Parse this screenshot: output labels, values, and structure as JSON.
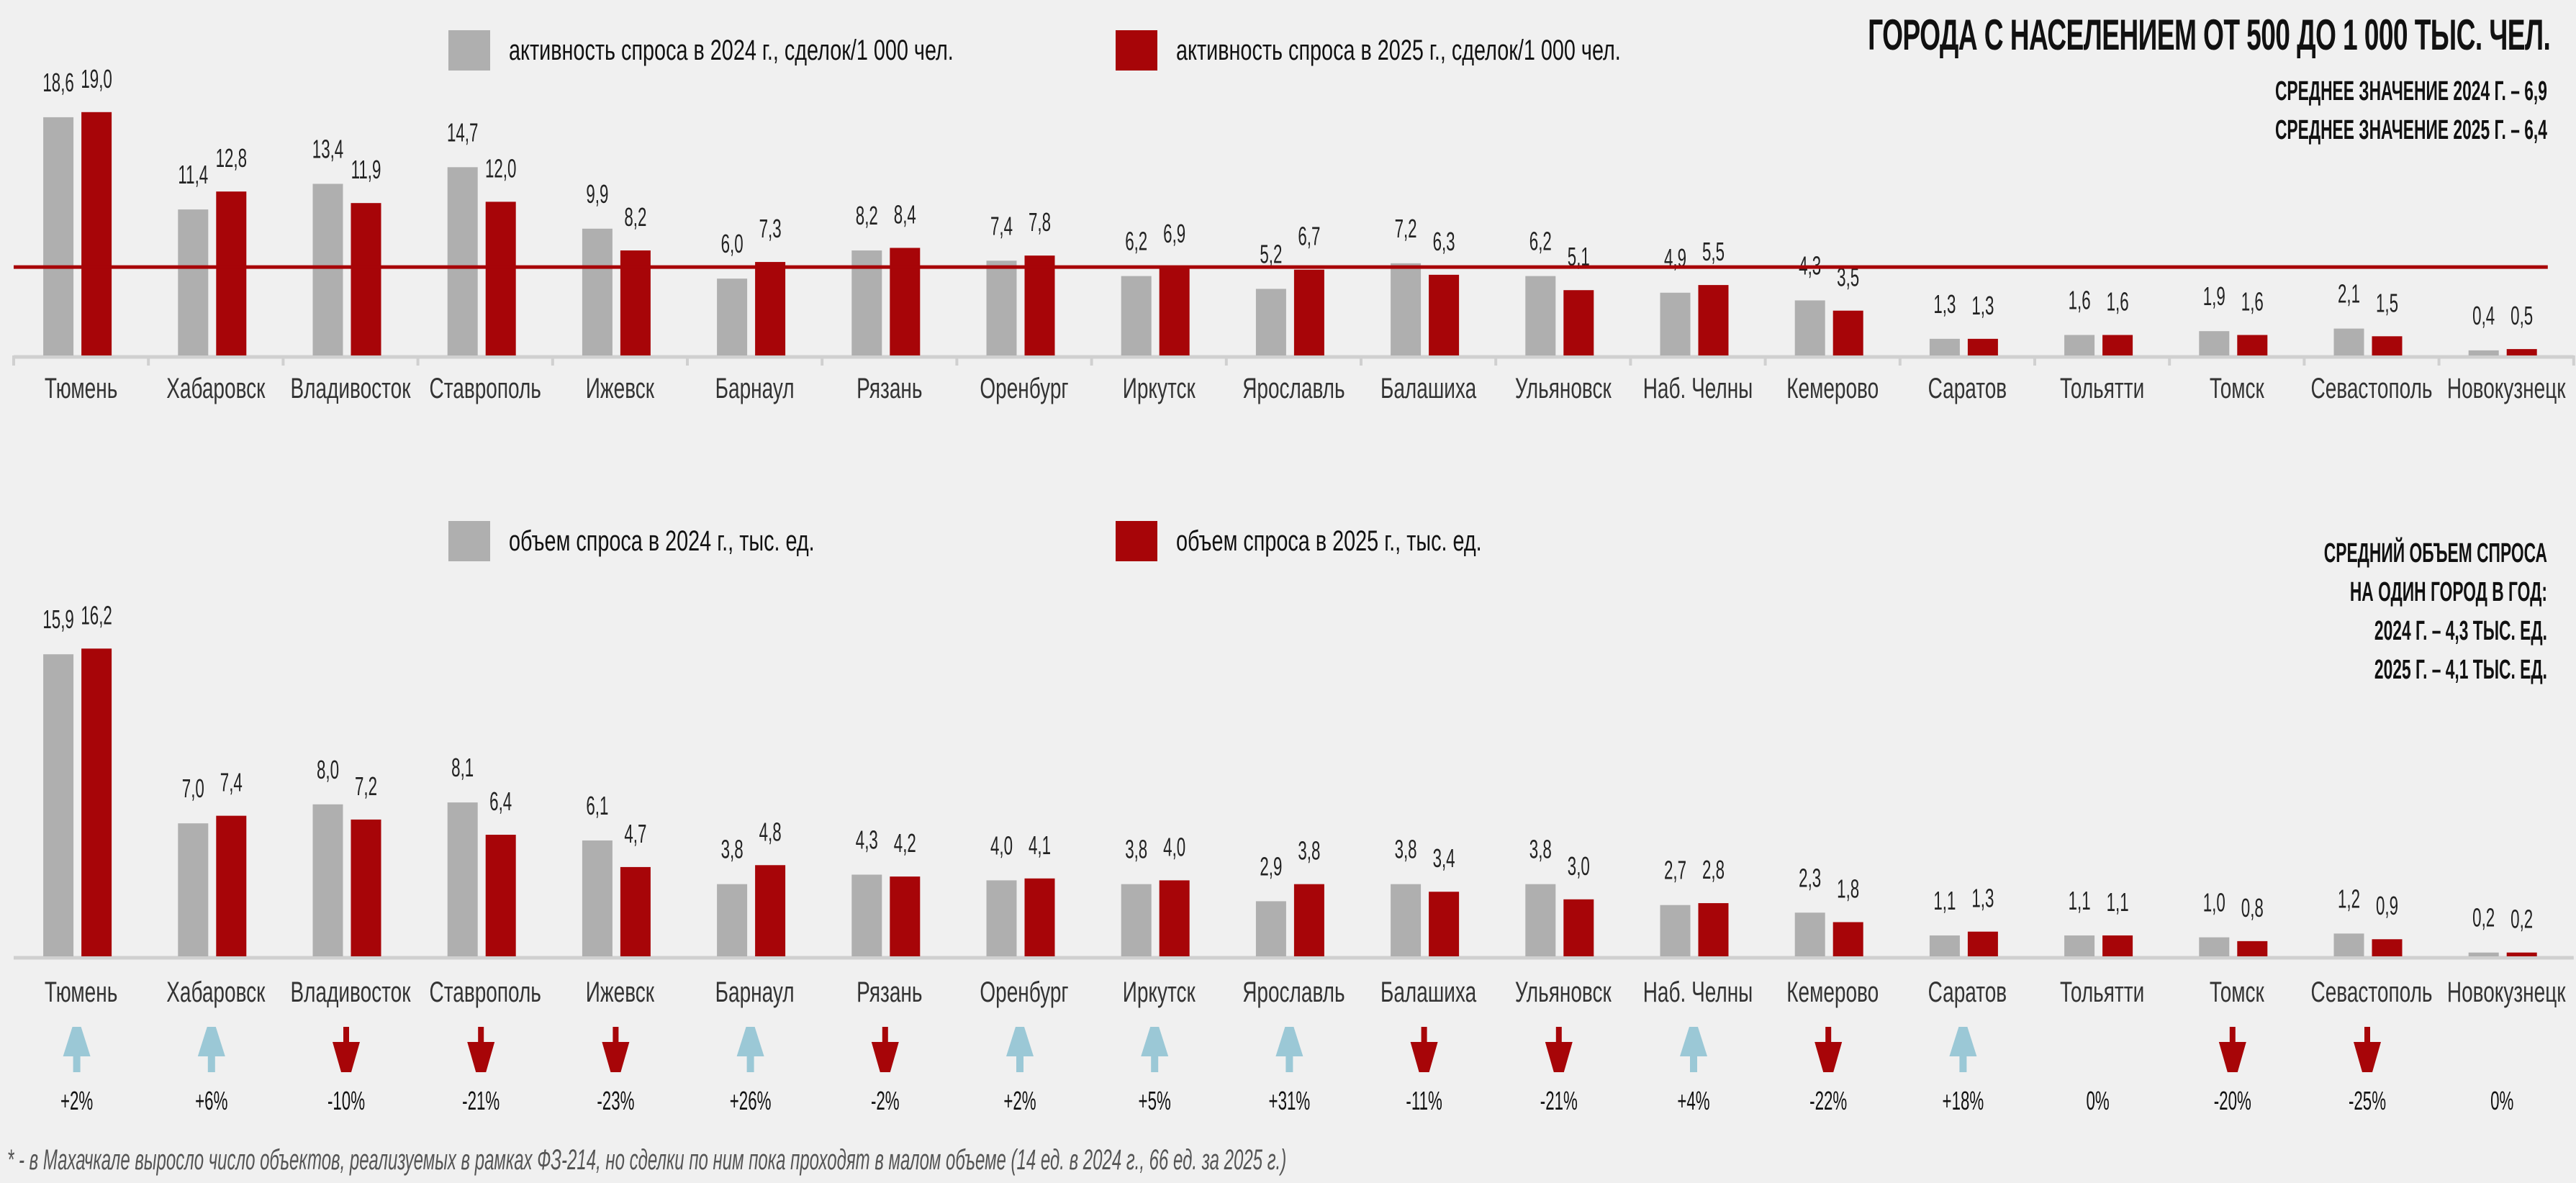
{
  "title": "ГОРОДА С НАСЕЛЕНИЕМ ОТ 500 ДО 1 000 ТЫС. ЧЕЛ.",
  "colors": {
    "series_2024": "#afafaf",
    "series_2025": "#a70508",
    "average_line": "#a70508",
    "arrow_up": "#9bc8d6",
    "arrow_down": "#a70508",
    "axis": "#d0d0d0",
    "background": "#f0f0f0"
  },
  "top_notes": [
    "СРЕДНЕЕ ЗНАЧЕНИЕ 2024 Г. – 6,9",
    "СРЕДНЕЕ ЗНАЧЕНИЕ 2025 Г. – 6,4"
  ],
  "bottom_notes": [
    "СРЕДНИЙ ОБЪЕМ СПРОСА",
    "НА ОДИН ГОРОД В ГОД:",
    "2024 Г. – 4,3 ТЫС. ЕД.",
    "2025 Г. – 4,1 ТЫС. ЕД."
  ],
  "footnote": "* - в Махачкале выросло число объектов, реализуемых в рамках ФЗ-214, но сделки по ним пока проходят в малом объеме (14 ед. в 2024 г., 66 ед. за 2025 г.)",
  "chart_data": [
    {
      "type": "bar",
      "title": "активность спроса",
      "xlabel": "",
      "ylabel": "сделок/1 000 чел.",
      "ylim": [
        0,
        19
      ],
      "grid": false,
      "legend_position": "top",
      "categories": [
        "Тюмень",
        "Хабаровск",
        "Владивосток",
        "Ставрополь",
        "Ижевск",
        "Барнаул",
        "Рязань",
        "Оренбург",
        "Иркутск",
        "Ярославль",
        "Балашиха",
        "Ульяновск",
        "Наб. Челны",
        "Кемерово",
        "Саратов",
        "Тольятти",
        "Томск",
        "Севастополь",
        "Новокузнецк"
      ],
      "series": [
        {
          "name": "активность спроса в 2024 г., сделок/1 000 чел.",
          "values": [
            18.6,
            11.4,
            13.4,
            14.7,
            9.9,
            6.0,
            8.2,
            7.4,
            6.2,
            5.2,
            7.2,
            6.2,
            4.9,
            4.3,
            1.3,
            1.6,
            1.9,
            2.1,
            0.4
          ]
        },
        {
          "name": "активность спроса в 2025 г., сделок/1 000 чел.",
          "values": [
            19.0,
            12.8,
            11.9,
            12.0,
            8.2,
            7.3,
            8.4,
            7.8,
            6.9,
            6.7,
            6.3,
            5.1,
            5.5,
            3.5,
            1.3,
            1.6,
            1.6,
            1.5,
            0.5
          ]
        }
      ],
      "reference_line": {
        "label": "среднее значение",
        "value": 6.9
      }
    },
    {
      "type": "bar",
      "title": "объем спроса",
      "xlabel": "",
      "ylabel": "тыс. ед.",
      "ylim": [
        0,
        16.2
      ],
      "grid": false,
      "legend_position": "top",
      "categories": [
        "Тюмень",
        "Хабаровск",
        "Владивосток",
        "Ставрополь",
        "Ижевск",
        "Барнаул",
        "Рязань",
        "Оренбург",
        "Иркутск",
        "Ярославль",
        "Балашиха",
        "Ульяновск",
        "Наб. Челны",
        "Кемерово",
        "Саратов",
        "Тольятти",
        "Томск",
        "Севастополь",
        "Новокузнецк"
      ],
      "series": [
        {
          "name": "объем спроса в 2024 г., тыс. ед.",
          "values": [
            15.9,
            7.0,
            8.0,
            8.1,
            6.1,
            3.8,
            4.3,
            4.0,
            3.8,
            2.9,
            3.8,
            3.8,
            2.7,
            2.3,
            1.1,
            1.1,
            1.0,
            1.2,
            0.2
          ]
        },
        {
          "name": "объем спроса в 2025 г., тыс. ед.",
          "values": [
            16.2,
            7.4,
            7.2,
            6.4,
            4.7,
            4.8,
            4.2,
            4.1,
            4.0,
            3.8,
            3.4,
            3.0,
            2.8,
            1.8,
            1.3,
            1.1,
            0.8,
            0.9,
            0.2
          ]
        }
      ],
      "changes": [
        {
          "label": "+2%",
          "direction": "up"
        },
        {
          "label": "+6%",
          "direction": "up"
        },
        {
          "label": "-10%",
          "direction": "down"
        },
        {
          "label": "-21%",
          "direction": "down"
        },
        {
          "label": "-23%",
          "direction": "down"
        },
        {
          "label": "+26%",
          "direction": "up"
        },
        {
          "label": "-2%",
          "direction": "down"
        },
        {
          "label": "+2%",
          "direction": "up"
        },
        {
          "label": "+5%",
          "direction": "up"
        },
        {
          "label": "+31%",
          "direction": "up"
        },
        {
          "label": "-11%",
          "direction": "down"
        },
        {
          "label": "-21%",
          "direction": "down"
        },
        {
          "label": "+4%",
          "direction": "up"
        },
        {
          "label": "-22%",
          "direction": "down"
        },
        {
          "label": "+18%",
          "direction": "up"
        },
        {
          "label": "0%",
          "direction": "none"
        },
        {
          "label": "-20%",
          "direction": "down"
        },
        {
          "label": "-25%",
          "direction": "down"
        },
        {
          "label": "0%",
          "direction": "none"
        }
      ]
    }
  ]
}
